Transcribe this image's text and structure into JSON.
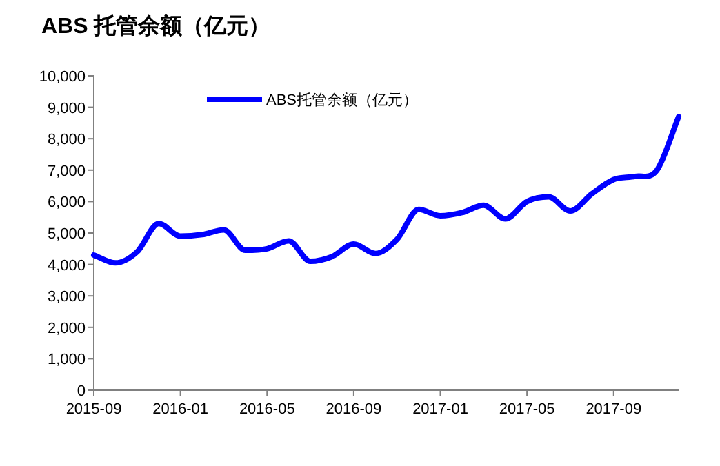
{
  "chart_data": {
    "type": "line",
    "title": "ABS 托管余额（亿元）",
    "x": [
      "2015-09",
      "2015-10",
      "2015-11",
      "2015-12",
      "2016-01",
      "2016-02",
      "2016-03",
      "2016-04",
      "2016-05",
      "2016-06",
      "2016-07",
      "2016-08",
      "2016-09",
      "2016-10",
      "2016-11",
      "2016-12",
      "2017-01",
      "2017-02",
      "2017-03",
      "2017-04",
      "2017-05",
      "2017-06",
      "2017-07",
      "2017-08",
      "2017-09",
      "2017-10",
      "2017-11",
      "2017-12"
    ],
    "series": [
      {
        "name": "ABS托管余额（亿元）",
        "color": "#0000ff",
        "values": [
          4300,
          4050,
          4400,
          5300,
          4900,
          4950,
          5100,
          4450,
          4500,
          4750,
          4100,
          4250,
          4650,
          4350,
          4800,
          5750,
          5550,
          5650,
          5880,
          5450,
          6000,
          6150,
          5700,
          6250,
          6700,
          6800,
          7000,
          8700
        ]
      }
    ],
    "xlim": [
      "2015-09",
      "2017-12"
    ],
    "xticks": [
      {
        "value": "2015-09",
        "label": "2015-09"
      },
      {
        "value": "2016-01",
        "label": "2016-01"
      },
      {
        "value": "2016-05",
        "label": "2016-05"
      },
      {
        "value": "2016-09",
        "label": "2016-09"
      },
      {
        "value": "2017-01",
        "label": "2017-01"
      },
      {
        "value": "2017-05",
        "label": "2017-05"
      },
      {
        "value": "2017-09",
        "label": "2017-09"
      }
    ],
    "ylim": [
      0,
      10000
    ],
    "yticks": [
      {
        "value": 0,
        "label": "0"
      },
      {
        "value": 1000,
        "label": "1,000"
      },
      {
        "value": 2000,
        "label": "2,000"
      },
      {
        "value": 3000,
        "label": "3,000"
      },
      {
        "value": 4000,
        "label": "4,000"
      },
      {
        "value": 5000,
        "label": "5,000"
      },
      {
        "value": 6000,
        "label": "6,000"
      },
      {
        "value": 7000,
        "label": "7,000"
      },
      {
        "value": 8000,
        "label": "8,000"
      },
      {
        "value": 9000,
        "label": "9,000"
      },
      {
        "value": 10000,
        "label": "10,000"
      }
    ],
    "grid": false,
    "legend": "top",
    "marker": "none",
    "line_style": "solid"
  }
}
